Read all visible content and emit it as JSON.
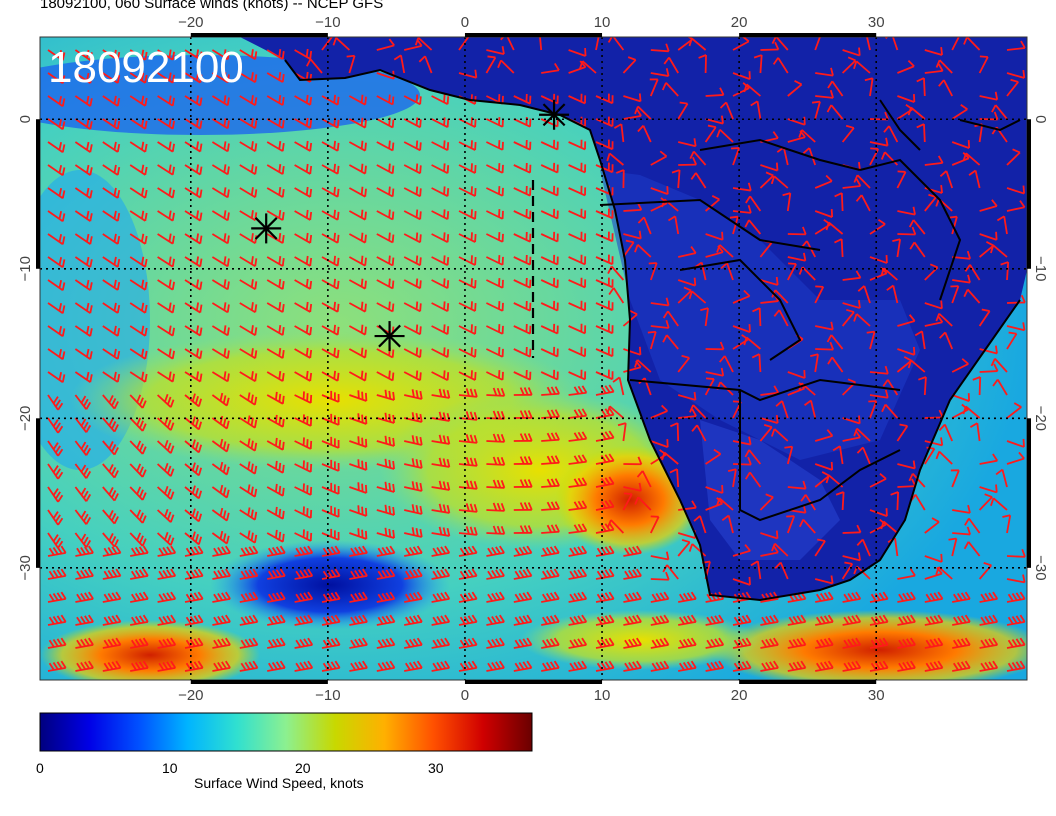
{
  "title": "18092100, 060 Surface winds (knots) -- NCEP GFS",
  "stamp": "18092100",
  "map": {
    "lon_range": [
      -31,
      41
    ],
    "lat_range": [
      -37.5,
      5.5
    ],
    "top_lon_ticks": [
      "−20",
      "−10",
      "0",
      "10",
      "20",
      "30"
    ],
    "bottom_lon_ticks": [
      "−20",
      "−10",
      "0",
      "10",
      "20",
      "30"
    ],
    "left_lat_ticks": [
      "0",
      "−10",
      "−20",
      "−30"
    ],
    "right_lat_ticks": [
      "0",
      "−10",
      "−20",
      "−30"
    ],
    "gridlines": "dotted, every 10 degrees",
    "barb_color": "#ff1a1a",
    "land_color": "#1020a0",
    "markers": [
      {
        "name": "star-marker",
        "lon": 6.5,
        "lat": 0.3
      },
      {
        "name": "star-marker",
        "lon": -14.5,
        "lat": -7.3
      },
      {
        "name": "star-marker",
        "lon": -5.5,
        "lat": -14.5
      }
    ]
  },
  "colorbar": {
    "label": "Surface Wind Speed, knots",
    "ticks": [
      "0",
      "10",
      "20",
      "30"
    ],
    "range": [
      0,
      37
    ],
    "stops": [
      "#00007f",
      "#0000e6",
      "#0050ff",
      "#00b4ff",
      "#30e0d0",
      "#8cf090",
      "#c8d800",
      "#ffb000",
      "#ff5000",
      "#d00000",
      "#6a0000"
    ]
  }
}
